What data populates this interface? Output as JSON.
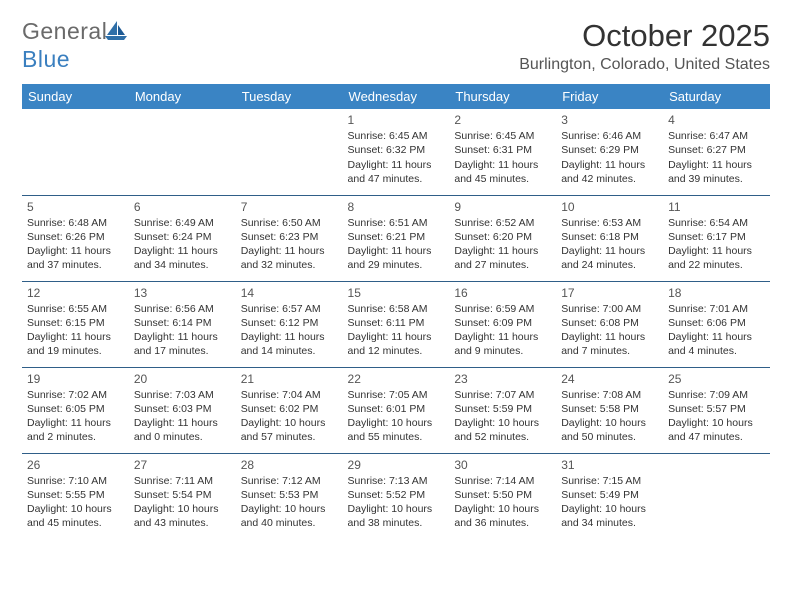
{
  "brand": {
    "part1": "General",
    "part2": "Blue"
  },
  "title": "October 2025",
  "location": "Burlington, Colorado, United States",
  "weekdays": [
    "Sunday",
    "Monday",
    "Tuesday",
    "Wednesday",
    "Thursday",
    "Friday",
    "Saturday"
  ],
  "colors": {
    "header_bg": "#3a84c4",
    "header_text": "#ffffff",
    "rule": "#2f5e88",
    "logo_gray": "#6a6a6a",
    "logo_blue": "#3a7fbf"
  },
  "fonts": {
    "title_size_pt": 23,
    "location_size_pt": 12,
    "weekday_size_pt": 10,
    "cell_size_pt": 8
  },
  "weeks": [
    [
      null,
      null,
      null,
      {
        "n": "1",
        "sr": "6:45 AM",
        "ss": "6:32 PM",
        "dl": "11 hours and 47 minutes."
      },
      {
        "n": "2",
        "sr": "6:45 AM",
        "ss": "6:31 PM",
        "dl": "11 hours and 45 minutes."
      },
      {
        "n": "3",
        "sr": "6:46 AM",
        "ss": "6:29 PM",
        "dl": "11 hours and 42 minutes."
      },
      {
        "n": "4",
        "sr": "6:47 AM",
        "ss": "6:27 PM",
        "dl": "11 hours and 39 minutes."
      }
    ],
    [
      {
        "n": "5",
        "sr": "6:48 AM",
        "ss": "6:26 PM",
        "dl": "11 hours and 37 minutes."
      },
      {
        "n": "6",
        "sr": "6:49 AM",
        "ss": "6:24 PM",
        "dl": "11 hours and 34 minutes."
      },
      {
        "n": "7",
        "sr": "6:50 AM",
        "ss": "6:23 PM",
        "dl": "11 hours and 32 minutes."
      },
      {
        "n": "8",
        "sr": "6:51 AM",
        "ss": "6:21 PM",
        "dl": "11 hours and 29 minutes."
      },
      {
        "n": "9",
        "sr": "6:52 AM",
        "ss": "6:20 PM",
        "dl": "11 hours and 27 minutes."
      },
      {
        "n": "10",
        "sr": "6:53 AM",
        "ss": "6:18 PM",
        "dl": "11 hours and 24 minutes."
      },
      {
        "n": "11",
        "sr": "6:54 AM",
        "ss": "6:17 PM",
        "dl": "11 hours and 22 minutes."
      }
    ],
    [
      {
        "n": "12",
        "sr": "6:55 AM",
        "ss": "6:15 PM",
        "dl": "11 hours and 19 minutes."
      },
      {
        "n": "13",
        "sr": "6:56 AM",
        "ss": "6:14 PM",
        "dl": "11 hours and 17 minutes."
      },
      {
        "n": "14",
        "sr": "6:57 AM",
        "ss": "6:12 PM",
        "dl": "11 hours and 14 minutes."
      },
      {
        "n": "15",
        "sr": "6:58 AM",
        "ss": "6:11 PM",
        "dl": "11 hours and 12 minutes."
      },
      {
        "n": "16",
        "sr": "6:59 AM",
        "ss": "6:09 PM",
        "dl": "11 hours and 9 minutes."
      },
      {
        "n": "17",
        "sr": "7:00 AM",
        "ss": "6:08 PM",
        "dl": "11 hours and 7 minutes."
      },
      {
        "n": "18",
        "sr": "7:01 AM",
        "ss": "6:06 PM",
        "dl": "11 hours and 4 minutes."
      }
    ],
    [
      {
        "n": "19",
        "sr": "7:02 AM",
        "ss": "6:05 PM",
        "dl": "11 hours and 2 minutes."
      },
      {
        "n": "20",
        "sr": "7:03 AM",
        "ss": "6:03 PM",
        "dl": "11 hours and 0 minutes."
      },
      {
        "n": "21",
        "sr": "7:04 AM",
        "ss": "6:02 PM",
        "dl": "10 hours and 57 minutes."
      },
      {
        "n": "22",
        "sr": "7:05 AM",
        "ss": "6:01 PM",
        "dl": "10 hours and 55 minutes."
      },
      {
        "n": "23",
        "sr": "7:07 AM",
        "ss": "5:59 PM",
        "dl": "10 hours and 52 minutes."
      },
      {
        "n": "24",
        "sr": "7:08 AM",
        "ss": "5:58 PM",
        "dl": "10 hours and 50 minutes."
      },
      {
        "n": "25",
        "sr": "7:09 AM",
        "ss": "5:57 PM",
        "dl": "10 hours and 47 minutes."
      }
    ],
    [
      {
        "n": "26",
        "sr": "7:10 AM",
        "ss": "5:55 PM",
        "dl": "10 hours and 45 minutes."
      },
      {
        "n": "27",
        "sr": "7:11 AM",
        "ss": "5:54 PM",
        "dl": "10 hours and 43 minutes."
      },
      {
        "n": "28",
        "sr": "7:12 AM",
        "ss": "5:53 PM",
        "dl": "10 hours and 40 minutes."
      },
      {
        "n": "29",
        "sr": "7:13 AM",
        "ss": "5:52 PM",
        "dl": "10 hours and 38 minutes."
      },
      {
        "n": "30",
        "sr": "7:14 AM",
        "ss": "5:50 PM",
        "dl": "10 hours and 36 minutes."
      },
      {
        "n": "31",
        "sr": "7:15 AM",
        "ss": "5:49 PM",
        "dl": "10 hours and 34 minutes."
      },
      null
    ]
  ],
  "labels": {
    "sunrise": "Sunrise:",
    "sunset": "Sunset:",
    "daylight": "Daylight:"
  }
}
